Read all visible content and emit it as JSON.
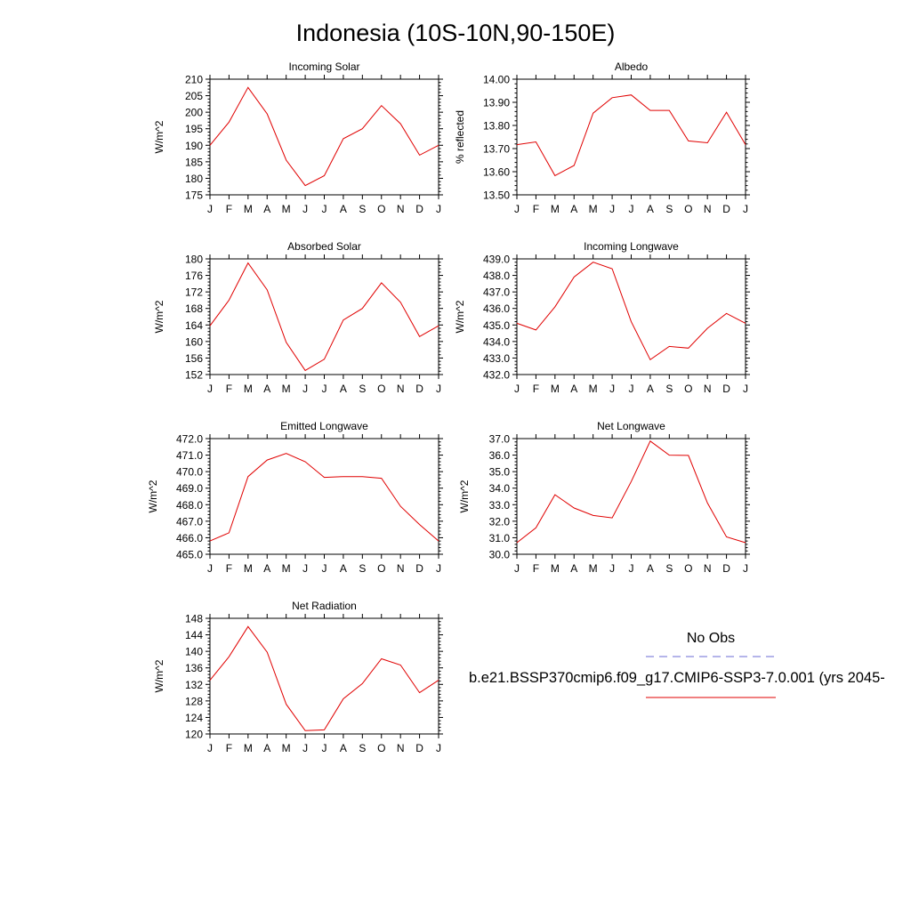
{
  "page": {
    "title": "Indonesia (10S-10N,90-150E)"
  },
  "legend": {
    "obs_label": "No Obs",
    "obs_color": "#6b6bd6",
    "model_label": "b.e21.BSSP370cmip6.f09_g17.CMIP6-SSP3-7.0.001 (yrs 2045-",
    "model_color": "#e00000"
  },
  "chart_data": [
    {
      "type": "line",
      "title": "Incoming Solar",
      "ylabel": "W/m^2",
      "categories": [
        "J",
        "F",
        "M",
        "A",
        "M",
        "J",
        "J",
        "A",
        "S",
        "O",
        "N",
        "D",
        "J"
      ],
      "ylim": [
        175,
        210
      ],
      "yticks": [
        175,
        180,
        185,
        190,
        195,
        200,
        205,
        210
      ],
      "ytick_labels": [
        "175",
        "180",
        "185",
        "190",
        "195",
        "200",
        "205",
        "210"
      ],
      "series": [
        {
          "color": "#e00000",
          "values": [
            190,
            197,
            207.5,
            199.5,
            185.5,
            177.8,
            180.8,
            192,
            195,
            202,
            196.5,
            187,
            190
          ]
        }
      ]
    },
    {
      "type": "line",
      "title": "Albedo",
      "ylabel": "% reflected",
      "categories": [
        "J",
        "F",
        "M",
        "A",
        "M",
        "J",
        "J",
        "A",
        "S",
        "O",
        "N",
        "D",
        "J"
      ],
      "ylim": [
        13.5,
        14.0
      ],
      "yticks": [
        13.5,
        13.6,
        13.7,
        13.8,
        13.9,
        14.0
      ],
      "ytick_labels": [
        "13.50",
        "13.60",
        "13.70",
        "13.80",
        "13.90",
        "14.00"
      ],
      "series": [
        {
          "color": "#e00000",
          "values": [
            13.717,
            13.729,
            13.583,
            13.627,
            13.853,
            13.92,
            13.932,
            13.865,
            13.865,
            13.733,
            13.725,
            13.857,
            13.717
          ]
        }
      ]
    },
    {
      "type": "line",
      "title": "Absorbed Solar",
      "ylabel": "W/m^2",
      "categories": [
        "J",
        "F",
        "M",
        "A",
        "M",
        "J",
        "J",
        "A",
        "S",
        "O",
        "N",
        "D",
        "J"
      ],
      "ylim": [
        152,
        180
      ],
      "yticks": [
        152,
        156,
        160,
        164,
        168,
        172,
        176,
        180
      ],
      "ytick_labels": [
        "152",
        "156",
        "160",
        "164",
        "168",
        "172",
        "176",
        "180"
      ],
      "series": [
        {
          "color": "#e00000",
          "values": [
            163.8,
            170,
            179,
            172.5,
            159.8,
            153,
            155.7,
            165.2,
            168,
            174.2,
            169.5,
            161.2,
            163.8
          ]
        }
      ]
    },
    {
      "type": "line",
      "title": "Incoming Longwave",
      "ylabel": "W/m^2",
      "categories": [
        "J",
        "F",
        "M",
        "A",
        "M",
        "J",
        "J",
        "A",
        "S",
        "O",
        "N",
        "D",
        "J"
      ],
      "ylim": [
        432,
        439
      ],
      "yticks": [
        432,
        433,
        434,
        435,
        436,
        437,
        438,
        439
      ],
      "ytick_labels": [
        "432.0",
        "433.0",
        "434.0",
        "435.0",
        "436.0",
        "437.0",
        "438.0",
        "439.0"
      ],
      "series": [
        {
          "color": "#e00000",
          "values": [
            435.1,
            434.7,
            436.1,
            437.9,
            438.8,
            438.4,
            435.2,
            432.9,
            433.7,
            433.6,
            434.8,
            435.7,
            435.1
          ]
        }
      ]
    },
    {
      "type": "line",
      "title": "Emitted Longwave",
      "ylabel": "W/m^2",
      "categories": [
        "J",
        "F",
        "M",
        "A",
        "M",
        "J",
        "J",
        "A",
        "S",
        "O",
        "N",
        "D",
        "J"
      ],
      "ylim": [
        465,
        472
      ],
      "yticks": [
        465,
        466,
        467,
        468,
        469,
        470,
        471,
        472
      ],
      "ytick_labels": [
        "465.0",
        "466.0",
        "467.0",
        "468.0",
        "469.0",
        "470.0",
        "471.0",
        "472.0"
      ],
      "series": [
        {
          "color": "#e00000",
          "values": [
            465.8,
            466.3,
            469.7,
            470.7,
            471.1,
            470.6,
            469.65,
            469.7,
            469.7,
            469.6,
            467.9,
            466.8,
            465.8
          ]
        }
      ]
    },
    {
      "type": "line",
      "title": "Net Longwave",
      "ylabel": "W/m^2",
      "categories": [
        "J",
        "F",
        "M",
        "A",
        "M",
        "J",
        "J",
        "A",
        "S",
        "O",
        "N",
        "D",
        "J"
      ],
      "ylim": [
        30,
        37
      ],
      "yticks": [
        30,
        31,
        32,
        33,
        34,
        35,
        36,
        37
      ],
      "ytick_labels": [
        "30.0",
        "31.0",
        "32.0",
        "33.0",
        "34.0",
        "35.0",
        "36.0",
        "37.0"
      ],
      "series": [
        {
          "color": "#e00000",
          "values": [
            30.7,
            31.6,
            33.6,
            32.8,
            32.35,
            32.2,
            34.4,
            36.85,
            36.0,
            35.98,
            33.1,
            31.05,
            30.7
          ]
        }
      ]
    },
    {
      "type": "line",
      "title": "Net Radiation",
      "ylabel": "W/m^2",
      "categories": [
        "J",
        "F",
        "M",
        "A",
        "M",
        "J",
        "J",
        "A",
        "S",
        "O",
        "N",
        "D",
        "J"
      ],
      "ylim": [
        120,
        148
      ],
      "yticks": [
        120,
        124,
        128,
        132,
        136,
        140,
        144,
        148
      ],
      "ytick_labels": [
        "120",
        "124",
        "128",
        "132",
        "136",
        "140",
        "144",
        "148"
      ],
      "series": [
        {
          "color": "#e00000",
          "values": [
            133,
            138.7,
            146,
            139.8,
            127.2,
            120.8,
            121,
            128.5,
            132.2,
            138.2,
            136.7,
            130,
            133
          ]
        }
      ]
    }
  ]
}
